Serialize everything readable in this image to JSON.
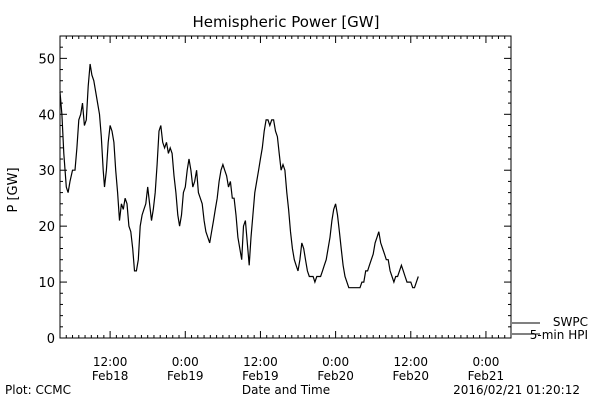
{
  "chart_data": {
    "type": "line",
    "title": "Hemispheric Power [GW]",
    "ylabel": "P [GW]",
    "xlabel": "Date and Time",
    "ylim": [
      0,
      54
    ],
    "yticks": [
      0,
      10,
      20,
      30,
      40,
      50
    ],
    "x_unit": "hours since 2016-02-17 00:00",
    "xlim": [
      4,
      76
    ],
    "xticks": [
      {
        "x": 12,
        "time": "12:00",
        "date": "Feb18"
      },
      {
        "x": 24,
        "time": "0:00",
        "date": "Feb19"
      },
      {
        "x": 36,
        "time": "12:00",
        "date": "Feb19"
      },
      {
        "x": 48,
        "time": "0:00",
        "date": "Feb20"
      },
      {
        "x": 60,
        "time": "12:00",
        "date": "Feb20"
      },
      {
        "x": 72,
        "time": "0:00",
        "date": "Feb21"
      }
    ],
    "grid": false,
    "series": [
      {
        "name": "5-min HPI",
        "color": "#000000",
        "points": [
          [
            4.0,
            44
          ],
          [
            4.3,
            40
          ],
          [
            4.6,
            33
          ],
          [
            5.0,
            27
          ],
          [
            5.3,
            26
          ],
          [
            5.6,
            28
          ],
          [
            6.0,
            30
          ],
          [
            6.4,
            30
          ],
          [
            6.7,
            34
          ],
          [
            7.0,
            39
          ],
          [
            7.3,
            40
          ],
          [
            7.6,
            42
          ],
          [
            7.9,
            38
          ],
          [
            8.2,
            39
          ],
          [
            8.5,
            45
          ],
          [
            8.8,
            49
          ],
          [
            9.1,
            47
          ],
          [
            9.4,
            46
          ],
          [
            9.7,
            44
          ],
          [
            10.0,
            42
          ],
          [
            10.3,
            40
          ],
          [
            10.6,
            36
          ],
          [
            10.9,
            30
          ],
          [
            11.1,
            27
          ],
          [
            11.4,
            30
          ],
          [
            11.7,
            35
          ],
          [
            12.0,
            38
          ],
          [
            12.3,
            37
          ],
          [
            12.6,
            35
          ],
          [
            12.9,
            30
          ],
          [
            13.2,
            26
          ],
          [
            13.5,
            21
          ],
          [
            13.8,
            24
          ],
          [
            14.1,
            23
          ],
          [
            14.4,
            25
          ],
          [
            14.7,
            24
          ],
          [
            15.0,
            20
          ],
          [
            15.3,
            19
          ],
          [
            15.6,
            16
          ],
          [
            15.9,
            12
          ],
          [
            16.2,
            12
          ],
          [
            16.5,
            14
          ],
          [
            16.8,
            20
          ],
          [
            17.1,
            22
          ],
          [
            17.4,
            23
          ],
          [
            17.7,
            24
          ],
          [
            18.0,
            27
          ],
          [
            18.3,
            24
          ],
          [
            18.6,
            21
          ],
          [
            18.9,
            23
          ],
          [
            19.2,
            26
          ],
          [
            19.5,
            31
          ],
          [
            19.8,
            37
          ],
          [
            20.1,
            38
          ],
          [
            20.4,
            35
          ],
          [
            20.7,
            34
          ],
          [
            21.0,
            35
          ],
          [
            21.3,
            33
          ],
          [
            21.6,
            34
          ],
          [
            21.9,
            33
          ],
          [
            22.2,
            29
          ],
          [
            22.5,
            26
          ],
          [
            22.8,
            22
          ],
          [
            23.1,
            20
          ],
          [
            23.4,
            22
          ],
          [
            23.7,
            26
          ],
          [
            24.0,
            27
          ],
          [
            24.3,
            30
          ],
          [
            24.6,
            32
          ],
          [
            24.9,
            30
          ],
          [
            25.2,
            27
          ],
          [
            25.5,
            28
          ],
          [
            25.8,
            30
          ],
          [
            26.1,
            26
          ],
          [
            26.4,
            25
          ],
          [
            26.7,
            24
          ],
          [
            27.0,
            21
          ],
          [
            27.3,
            19
          ],
          [
            27.6,
            18
          ],
          [
            27.9,
            17
          ],
          [
            28.2,
            19
          ],
          [
            28.5,
            21
          ],
          [
            28.8,
            23
          ],
          [
            29.1,
            25
          ],
          [
            29.4,
            28
          ],
          [
            29.7,
            30
          ],
          [
            30.0,
            31
          ],
          [
            30.3,
            30
          ],
          [
            30.6,
            29
          ],
          [
            30.9,
            27
          ],
          [
            31.2,
            28
          ],
          [
            31.5,
            25
          ],
          [
            31.8,
            25
          ],
          [
            32.1,
            22
          ],
          [
            32.4,
            18
          ],
          [
            32.7,
            16
          ],
          [
            33.0,
            14
          ],
          [
            33.3,
            20
          ],
          [
            33.6,
            21
          ],
          [
            33.9,
            17
          ],
          [
            34.2,
            13
          ],
          [
            34.5,
            18
          ],
          [
            34.8,
            22
          ],
          [
            35.1,
            26
          ],
          [
            35.4,
            28
          ],
          [
            35.7,
            30
          ],
          [
            36.0,
            32
          ],
          [
            36.3,
            34
          ],
          [
            36.6,
            37
          ],
          [
            36.9,
            39
          ],
          [
            37.2,
            39
          ],
          [
            37.5,
            38
          ],
          [
            37.8,
            39
          ],
          [
            38.1,
            39
          ],
          [
            38.4,
            37
          ],
          [
            38.7,
            36
          ],
          [
            39.0,
            33
          ],
          [
            39.3,
            30
          ],
          [
            39.6,
            31
          ],
          [
            39.9,
            30
          ],
          [
            40.2,
            26
          ],
          [
            40.5,
            23
          ],
          [
            40.8,
            19
          ],
          [
            41.1,
            16
          ],
          [
            41.4,
            14
          ],
          [
            41.7,
            13
          ],
          [
            42.0,
            12
          ],
          [
            42.3,
            14
          ],
          [
            42.6,
            17
          ],
          [
            42.9,
            16
          ],
          [
            43.2,
            14
          ],
          [
            43.5,
            12
          ],
          [
            43.8,
            11
          ],
          [
            44.1,
            11
          ],
          [
            44.4,
            11
          ],
          [
            44.7,
            10
          ],
          [
            45.0,
            11
          ],
          [
            45.3,
            11
          ],
          [
            45.6,
            11
          ],
          [
            45.9,
            12
          ],
          [
            46.2,
            13
          ],
          [
            46.5,
            14
          ],
          [
            46.8,
            16
          ],
          [
            47.1,
            18
          ],
          [
            47.4,
            21
          ],
          [
            47.7,
            23
          ],
          [
            48.0,
            24
          ],
          [
            48.3,
            22
          ],
          [
            48.6,
            19
          ],
          [
            48.9,
            16
          ],
          [
            49.2,
            13
          ],
          [
            49.5,
            11
          ],
          [
            49.8,
            10
          ],
          [
            50.1,
            9
          ],
          [
            50.4,
            9
          ],
          [
            50.7,
            9
          ],
          [
            51.0,
            9
          ],
          [
            51.3,
            9
          ],
          [
            51.6,
            9
          ],
          [
            51.9,
            9
          ],
          [
            52.2,
            10
          ],
          [
            52.5,
            10
          ],
          [
            52.8,
            12
          ],
          [
            53.1,
            12
          ],
          [
            53.4,
            13
          ],
          [
            53.7,
            14
          ],
          [
            54.0,
            15
          ],
          [
            54.3,
            17
          ],
          [
            54.6,
            18
          ],
          [
            54.9,
            19
          ],
          [
            55.2,
            17
          ],
          [
            55.5,
            16
          ],
          [
            55.8,
            15
          ],
          [
            56.1,
            14
          ],
          [
            56.4,
            14
          ],
          [
            56.7,
            12
          ],
          [
            57.0,
            11
          ],
          [
            57.3,
            10
          ],
          [
            57.6,
            11
          ],
          [
            57.9,
            11
          ],
          [
            58.2,
            12
          ],
          [
            58.5,
            13
          ],
          [
            58.8,
            12
          ],
          [
            59.1,
            11
          ],
          [
            59.4,
            10
          ],
          [
            59.7,
            10
          ],
          [
            60.0,
            10
          ],
          [
            60.3,
            9
          ],
          [
            60.6,
            9
          ],
          [
            60.9,
            10
          ],
          [
            61.2,
            11
          ]
        ]
      }
    ],
    "legend": {
      "placement": "bottom-right",
      "entries": [
        "SWPC",
        "5-min HPI"
      ]
    }
  },
  "footer": {
    "plot_source": "Plot: CCMC",
    "timestamp": "2016/02/21 01:20:12"
  }
}
